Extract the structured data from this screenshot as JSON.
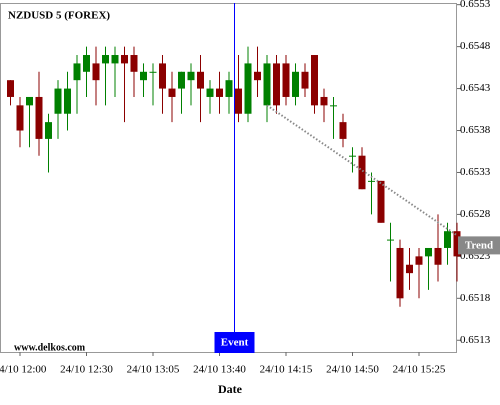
{
  "chart_data": {
    "type": "candlestick",
    "title": "NZDUSD 5 (FOREX)",
    "watermark": "www.delkos.com",
    "x_label": "Date",
    "categories": [
      null,
      "24/10 12:00",
      null,
      null,
      null,
      null,
      null,
      null,
      "24/10 12:30",
      null,
      null,
      null,
      null,
      null,
      null,
      "24/10 13:05",
      null,
      null,
      null,
      null,
      null,
      null,
      "24/10 13:40",
      null,
      null,
      null,
      null,
      null,
      null,
      "24/10 14:15",
      null,
      null,
      null,
      null,
      null,
      null,
      "24/10 14:50",
      null,
      null,
      null,
      null,
      null,
      null,
      "24/10 15:25",
      null,
      null,
      null,
      null
    ],
    "open": [
      0.6544,
      0.6541,
      0.6541,
      0.6542,
      0.6537,
      0.654,
      0.654,
      0.6544,
      0.6545,
      0.6546,
      0.6546,
      0.6546,
      0.6547,
      0.6547,
      0.6544,
      0.6545,
      0.6546,
      0.6543,
      0.6543,
      0.6544,
      0.6545,
      0.6542,
      0.6543,
      0.6542,
      0.6543,
      0.654,
      0.6545,
      0.6541,
      0.6546,
      0.6546,
      0.6542,
      0.6545,
      0.6547,
      0.6542,
      0.6541,
      0.6539,
      0.6535,
      0.6535,
      0.6532,
      0.6532,
      0.6525,
      0.6524,
      0.6522,
      0.6523,
      0.6523,
      0.6524,
      0.6524,
      0.6526
    ],
    "high": [
      0.6544,
      0.6542,
      0.6542,
      0.6545,
      0.654,
      0.6544,
      0.6545,
      0.6547,
      0.6548,
      0.6548,
      0.6548,
      0.6548,
      0.6548,
      0.6548,
      0.6546,
      0.6546,
      0.6547,
      0.6545,
      0.6545,
      0.6546,
      0.6547,
      0.6544,
      0.6545,
      0.6545,
      0.6547,
      0.6548,
      0.6548,
      0.6547,
      0.6547,
      0.6547,
      0.6546,
      0.6546,
      0.6547,
      0.6543,
      0.6542,
      0.654,
      0.6536,
      0.6536,
      0.6533,
      0.6532,
      0.6527,
      0.6525,
      0.6524,
      0.6524,
      0.6524,
      0.6528,
      0.6527,
      0.6527
    ],
    "low": [
      0.6541,
      0.6536,
      0.6536,
      0.6535,
      0.6533,
      0.6537,
      0.6538,
      0.654,
      0.6542,
      0.6541,
      0.6541,
      0.6542,
      0.6539,
      0.6542,
      0.6542,
      0.6541,
      0.654,
      0.6539,
      0.654,
      0.6541,
      0.6539,
      0.654,
      0.654,
      0.654,
      0.6539,
      0.6539,
      0.6542,
      0.6539,
      0.654,
      0.6541,
      0.6541,
      0.6542,
      0.654,
      0.6539,
      0.6537,
      0.6536,
      0.6533,
      0.6531,
      0.6528,
      0.6527,
      0.652,
      0.6517,
      0.6519,
      0.6518,
      0.6519,
      0.652,
      0.6522,
      0.652
    ],
    "close": [
      0.6542,
      0.6538,
      0.6542,
      0.6537,
      0.6539,
      0.6543,
      0.6543,
      0.6546,
      0.6547,
      0.6544,
      0.6547,
      0.6547,
      0.6546,
      0.6545,
      0.6545,
      0.6545,
      0.6543,
      0.6542,
      0.6545,
      0.6545,
      0.6543,
      0.6543,
      0.6542,
      0.6544,
      0.654,
      0.6546,
      0.6544,
      0.6546,
      0.6541,
      0.6542,
      0.6545,
      0.6543,
      0.6541,
      0.6541,
      0.6541,
      0.6537,
      0.6535,
      0.6531,
      0.6532,
      0.6527,
      0.6525,
      0.6518,
      0.6521,
      0.6522,
      0.6524,
      0.6522,
      0.6526,
      0.6523
    ],
    "up_color": "#008000",
    "down_color": "#8b0000",
    "ylim": [
      0.65116,
      0.65532
    ],
    "yticks": [
      0.6513,
      0.6518,
      0.6523,
      0.6528,
      0.6533,
      0.6538,
      0.6543,
      0.6548,
      0.6553
    ],
    "event": {
      "label": "Event",
      "index": 24,
      "color": "#0000ff"
    },
    "trend": {
      "label": "Trend",
      "x": [
        27,
        47
      ],
      "y": [
        0.6541,
        0.65255
      ],
      "color": "#888888"
    }
  }
}
